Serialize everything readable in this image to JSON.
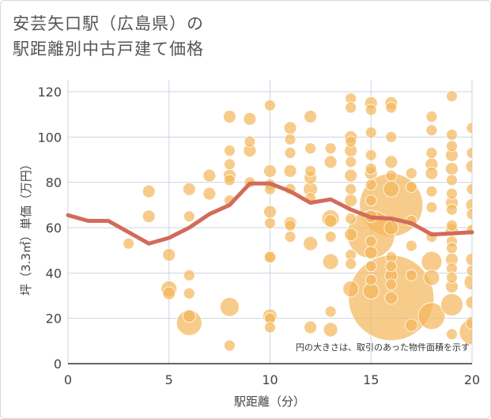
{
  "title_lines": [
    "安芸矢口駅（広島県）の",
    "駅距離別中古戸建て価格"
  ],
  "chart_data": {
    "type": "scatter",
    "xlabel": "駅距離（分）",
    "ylabel": "坪（3.3㎡）単価（万円）",
    "xlim": [
      0,
      20
    ],
    "ylim": [
      0,
      120
    ],
    "x_ticks": [
      "0",
      "5",
      "10",
      "15",
      "20"
    ],
    "y_ticks": [
      "0",
      "20",
      "40",
      "60",
      "80",
      "100",
      "120"
    ],
    "note": "円の大きさは、取引のあった物件面積を示す",
    "colors": {
      "bubble": "#f3b65a",
      "line": "#d26b5a",
      "grid": "#c9d6e3"
    },
    "trend_line": {
      "x": [
        0,
        1,
        2,
        3,
        4,
        5,
        6,
        7,
        8,
        9,
        10,
        11,
        12,
        13,
        14,
        15,
        16,
        17,
        18,
        19,
        20
      ],
      "y": [
        65.5,
        63,
        63,
        58,
        53,
        55.5,
        60,
        66,
        70,
        79.5,
        79.5,
        76,
        71,
        72.5,
        68,
        64.5,
        64,
        62,
        57,
        57.5,
        58
      ]
    },
    "points": [
      {
        "x": 3,
        "y": 53,
        "s": 7
      },
      {
        "x": 4,
        "y": 76,
        "s": 8
      },
      {
        "x": 4,
        "y": 65,
        "s": 8
      },
      {
        "x": 5,
        "y": 48,
        "s": 8
      },
      {
        "x": 5,
        "y": 33,
        "s": 10
      },
      {
        "x": 5,
        "y": 31,
        "s": 8
      },
      {
        "x": 6,
        "y": 77,
        "s": 8
      },
      {
        "x": 6,
        "y": 65,
        "s": 7
      },
      {
        "x": 6,
        "y": 39,
        "s": 7
      },
      {
        "x": 6,
        "y": 31,
        "s": 7
      },
      {
        "x": 6,
        "y": 21,
        "s": 8
      },
      {
        "x": 6,
        "y": 18,
        "s": 16
      },
      {
        "x": 7,
        "y": 83,
        "s": 8
      },
      {
        "x": 7,
        "y": 75,
        "s": 8
      },
      {
        "x": 8,
        "y": 109,
        "s": 8
      },
      {
        "x": 8,
        "y": 94,
        "s": 7
      },
      {
        "x": 8,
        "y": 88,
        "s": 7
      },
      {
        "x": 8,
        "y": 83,
        "s": 8
      },
      {
        "x": 8,
        "y": 81,
        "s": 7
      },
      {
        "x": 8,
        "y": 72,
        "s": 7
      },
      {
        "x": 8,
        "y": 25,
        "s": 12
      },
      {
        "x": 8,
        "y": 8,
        "s": 7
      },
      {
        "x": 9,
        "y": 108,
        "s": 8
      },
      {
        "x": 9,
        "y": 98,
        "s": 7
      },
      {
        "x": 9,
        "y": 94,
        "s": 8
      },
      {
        "x": 9,
        "y": 80,
        "s": 7
      },
      {
        "x": 10,
        "y": 114,
        "s": 7
      },
      {
        "x": 10,
        "y": 85,
        "s": 8
      },
      {
        "x": 10,
        "y": 79,
        "s": 7
      },
      {
        "x": 10,
        "y": 77,
        "s": 7
      },
      {
        "x": 10,
        "y": 67,
        "s": 8
      },
      {
        "x": 10,
        "y": 62,
        "s": 7
      },
      {
        "x": 10,
        "y": 47,
        "s": 8
      },
      {
        "x": 10,
        "y": 47,
        "s": 7
      },
      {
        "x": 10,
        "y": 21,
        "s": 9
      },
      {
        "x": 10,
        "y": 20,
        "s": 7
      },
      {
        "x": 10,
        "y": 16,
        "s": 7
      },
      {
        "x": 11,
        "y": 104,
        "s": 8
      },
      {
        "x": 11,
        "y": 99,
        "s": 7
      },
      {
        "x": 11,
        "y": 93,
        "s": 7
      },
      {
        "x": 11,
        "y": 85,
        "s": 8
      },
      {
        "x": 11,
        "y": 77,
        "s": 7
      },
      {
        "x": 11,
        "y": 62,
        "s": 8
      },
      {
        "x": 11,
        "y": 61,
        "s": 7
      },
      {
        "x": 11,
        "y": 56,
        "s": 7
      },
      {
        "x": 12,
        "y": 109,
        "s": 8
      },
      {
        "x": 12,
        "y": 95,
        "s": 7
      },
      {
        "x": 12,
        "y": 85,
        "s": 7
      },
      {
        "x": 12,
        "y": 82,
        "s": 8
      },
      {
        "x": 12,
        "y": 77,
        "s": 9
      },
      {
        "x": 12,
        "y": 73,
        "s": 7
      },
      {
        "x": 12,
        "y": 53,
        "s": 9
      },
      {
        "x": 12,
        "y": 16,
        "s": 8
      },
      {
        "x": 13,
        "y": 95,
        "s": 7
      },
      {
        "x": 13,
        "y": 89,
        "s": 8
      },
      {
        "x": 13,
        "y": 64,
        "s": 11
      },
      {
        "x": 13,
        "y": 63,
        "s": 8
      },
      {
        "x": 13,
        "y": 56,
        "s": 7
      },
      {
        "x": 13,
        "y": 45,
        "s": 10
      },
      {
        "x": 13,
        "y": 23,
        "s": 7
      },
      {
        "x": 13,
        "y": 15,
        "s": 9
      },
      {
        "x": 14,
        "y": 117,
        "s": 7
      },
      {
        "x": 14,
        "y": 113,
        "s": 7
      },
      {
        "x": 14,
        "y": 100,
        "s": 8
      },
      {
        "x": 14,
        "y": 98,
        "s": 7
      },
      {
        "x": 14,
        "y": 94,
        "s": 8
      },
      {
        "x": 14,
        "y": 89,
        "s": 7
      },
      {
        "x": 14,
        "y": 83,
        "s": 8
      },
      {
        "x": 14,
        "y": 77,
        "s": 7
      },
      {
        "x": 14,
        "y": 72,
        "s": 8
      },
      {
        "x": 14,
        "y": 64,
        "s": 7
      },
      {
        "x": 14,
        "y": 57,
        "s": 8
      },
      {
        "x": 14,
        "y": 48,
        "s": 7
      },
      {
        "x": 14,
        "y": 44,
        "s": 7
      },
      {
        "x": 14,
        "y": 33,
        "s": 10
      },
      {
        "x": 15,
        "y": 115,
        "s": 8
      },
      {
        "x": 15,
        "y": 112,
        "s": 7
      },
      {
        "x": 15,
        "y": 102,
        "s": 7
      },
      {
        "x": 15,
        "y": 92,
        "s": 7
      },
      {
        "x": 15,
        "y": 86,
        "s": 7
      },
      {
        "x": 15,
        "y": 84,
        "s": 8
      },
      {
        "x": 15,
        "y": 79,
        "s": 7
      },
      {
        "x": 15,
        "y": 72,
        "s": 7
      },
      {
        "x": 15,
        "y": 65,
        "s": 8
      },
      {
        "x": 15,
        "y": 57,
        "s": 30
      },
      {
        "x": 15,
        "y": 54,
        "s": 7
      },
      {
        "x": 15,
        "y": 49,
        "s": 8
      },
      {
        "x": 15,
        "y": 43,
        "s": 7
      },
      {
        "x": 15,
        "y": 37,
        "s": 7
      },
      {
        "x": 15,
        "y": 32,
        "s": 10
      },
      {
        "x": 16,
        "y": 115,
        "s": 8
      },
      {
        "x": 16,
        "y": 113,
        "s": 7
      },
      {
        "x": 16,
        "y": 100,
        "s": 7
      },
      {
        "x": 16,
        "y": 89,
        "s": 8
      },
      {
        "x": 16,
        "y": 83,
        "s": 7
      },
      {
        "x": 16,
        "y": 77,
        "s": 10
      },
      {
        "x": 16,
        "y": 70,
        "s": 40
      },
      {
        "x": 16,
        "y": 60,
        "s": 9
      },
      {
        "x": 16,
        "y": 47,
        "s": 7
      },
      {
        "x": 16,
        "y": 43,
        "s": 7
      },
      {
        "x": 16,
        "y": 39,
        "s": 8
      },
      {
        "x": 16,
        "y": 35,
        "s": 7
      },
      {
        "x": 16,
        "y": 29,
        "s": 54
      },
      {
        "x": 16,
        "y": 29,
        "s": 8
      },
      {
        "x": 17,
        "y": 84,
        "s": 7
      },
      {
        "x": 17,
        "y": 78,
        "s": 7
      },
      {
        "x": 17,
        "y": 63,
        "s": 7
      },
      {
        "x": 17,
        "y": 52,
        "s": 7
      },
      {
        "x": 17,
        "y": 39,
        "s": 7
      },
      {
        "x": 17,
        "y": 17,
        "s": 8
      },
      {
        "x": 18,
        "y": 109,
        "s": 7
      },
      {
        "x": 18,
        "y": 103,
        "s": 7
      },
      {
        "x": 18,
        "y": 93,
        "s": 7
      },
      {
        "x": 18,
        "y": 88,
        "s": 8
      },
      {
        "x": 18,
        "y": 84,
        "s": 8
      },
      {
        "x": 18,
        "y": 76,
        "s": 7
      },
      {
        "x": 18,
        "y": 69,
        "s": 7
      },
      {
        "x": 18,
        "y": 56,
        "s": 7
      },
      {
        "x": 18,
        "y": 45,
        "s": 13
      },
      {
        "x": 18,
        "y": 38,
        "s": 10
      },
      {
        "x": 18,
        "y": 21,
        "s": 17
      },
      {
        "x": 19,
        "y": 118,
        "s": 7
      },
      {
        "x": 19,
        "y": 101,
        "s": 7
      },
      {
        "x": 19,
        "y": 96,
        "s": 7
      },
      {
        "x": 19,
        "y": 92,
        "s": 8
      },
      {
        "x": 19,
        "y": 86,
        "s": 8
      },
      {
        "x": 19,
        "y": 81,
        "s": 7
      },
      {
        "x": 19,
        "y": 75,
        "s": 7
      },
      {
        "x": 19,
        "y": 71,
        "s": 8
      },
      {
        "x": 19,
        "y": 68,
        "s": 7
      },
      {
        "x": 19,
        "y": 61,
        "s": 7
      },
      {
        "x": 19,
        "y": 59,
        "s": 8
      },
      {
        "x": 19,
        "y": 54,
        "s": 7
      },
      {
        "x": 19,
        "y": 51,
        "s": 7
      },
      {
        "x": 19,
        "y": 46,
        "s": 8
      },
      {
        "x": 19,
        "y": 42,
        "s": 7
      },
      {
        "x": 19,
        "y": 38,
        "s": 7
      },
      {
        "x": 19,
        "y": 34,
        "s": 8
      },
      {
        "x": 19,
        "y": 26,
        "s": 14
      },
      {
        "x": 19,
        "y": 13,
        "s": 7
      },
      {
        "x": 20,
        "y": 104,
        "s": 7
      },
      {
        "x": 20,
        "y": 93,
        "s": 7
      },
      {
        "x": 20,
        "y": 87,
        "s": 8
      },
      {
        "x": 20,
        "y": 77,
        "s": 7
      },
      {
        "x": 20,
        "y": 70,
        "s": 8
      },
      {
        "x": 20,
        "y": 66,
        "s": 7
      },
      {
        "x": 20,
        "y": 59,
        "s": 7
      },
      {
        "x": 20,
        "y": 46,
        "s": 8
      },
      {
        "x": 20,
        "y": 41,
        "s": 7
      },
      {
        "x": 20,
        "y": 36,
        "s": 10
      },
      {
        "x": 20,
        "y": 27,
        "s": 8
      },
      {
        "x": 20,
        "y": 18,
        "s": 8
      },
      {
        "x": 20,
        "y": 14,
        "s": 16
      }
    ]
  }
}
